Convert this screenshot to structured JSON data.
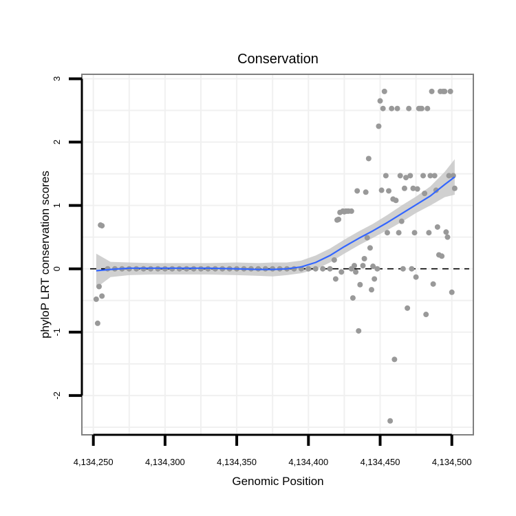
{
  "chart_data": {
    "type": "scatter",
    "title": "Conservation",
    "xlabel": "Genomic Position",
    "ylabel": "phyloP LRT conservation scores",
    "xlim": [
      4134242,
      4134515
    ],
    "ylim": [
      -2.62,
      3.07
    ],
    "x_ticks": [
      4134250,
      4134300,
      4134350,
      4134400,
      4134450,
      4134500
    ],
    "x_tick_labels": [
      "4,134,250",
      "4,134,300",
      "4,134,350",
      "4,134,400",
      "4,134,450",
      "4,134,500"
    ],
    "y_ticks": [
      -2,
      -1,
      0,
      1,
      2,
      3
    ],
    "y_tick_labels": [
      "-2",
      "-1",
      "0",
      "1",
      "2",
      "3"
    ],
    "reference_line": {
      "y": 0,
      "style": "dashed",
      "color": "#000000"
    },
    "grid": true,
    "colors": {
      "points": "#999999",
      "smooth": "#3366ff",
      "ribbon": "#c8c8c8",
      "grid": "#f0f0f0",
      "border": "#7f7f7f"
    },
    "series": [
      {
        "name": "observations",
        "type": "scatter",
        "points": [
          [
            4134252,
            -0.48
          ],
          [
            4134253,
            -0.86
          ],
          [
            4134254,
            -0.28
          ],
          [
            4134255,
            0.69
          ],
          [
            4134256,
            0.68
          ],
          [
            4134256,
            -0.43
          ],
          [
            4134260,
            0
          ],
          [
            4134265,
            0
          ],
          [
            4134270,
            0
          ],
          [
            4134275,
            0
          ],
          [
            4134280,
            0
          ],
          [
            4134285,
            0
          ],
          [
            4134290,
            0
          ],
          [
            4134295,
            0
          ],
          [
            4134300,
            0
          ],
          [
            4134305,
            0
          ],
          [
            4134310,
            0
          ],
          [
            4134315,
            0
          ],
          [
            4134320,
            0
          ],
          [
            4134325,
            0
          ],
          [
            4134330,
            0
          ],
          [
            4134335,
            0
          ],
          [
            4134340,
            0
          ],
          [
            4134345,
            0
          ],
          [
            4134350,
            0
          ],
          [
            4134355,
            0
          ],
          [
            4134360,
            0
          ],
          [
            4134365,
            0
          ],
          [
            4134370,
            0
          ],
          [
            4134375,
            0
          ],
          [
            4134380,
            0
          ],
          [
            4134385,
            0
          ],
          [
            4134390,
            0
          ],
          [
            4134395,
            0
          ],
          [
            4134400,
            0
          ],
          [
            4134405,
            0
          ],
          [
            4134410,
            0
          ],
          [
            4134415,
            0
          ],
          [
            4134418,
            0.14
          ],
          [
            4134419,
            -0.16
          ],
          [
            4134420,
            0.77
          ],
          [
            4134421,
            0.78
          ],
          [
            4134422,
            0.89
          ],
          [
            4134423,
            -0.05
          ],
          [
            4134424,
            0.91
          ],
          [
            4134425,
            0.9
          ],
          [
            4134426,
            0.91
          ],
          [
            4134427,
            0.91
          ],
          [
            4134428,
            0.91
          ],
          [
            4134430,
            0.91
          ],
          [
            4134430,
            0
          ],
          [
            4134431,
            -0.46
          ],
          [
            4134432,
            0.05
          ],
          [
            4134433,
            -0.05
          ],
          [
            4134434,
            1.23
          ],
          [
            4134435,
            -0.98
          ],
          [
            4134436,
            -0.25
          ],
          [
            4134438,
            0.05
          ],
          [
            4134439,
            0.16
          ],
          [
            4134440,
            1.21
          ],
          [
            4134441,
            0.49
          ],
          [
            4134442,
            1.74
          ],
          [
            4134443,
            0.33
          ],
          [
            4134444,
            -0.33
          ],
          [
            4134445,
            0.04
          ],
          [
            4134446,
            -0.16
          ],
          [
            4134448,
            0
          ],
          [
            4134449,
            2.25
          ],
          [
            4134450,
            2.65
          ],
          [
            4134451,
            1.24
          ],
          [
            4134452,
            2.53
          ],
          [
            4134453,
            2.8
          ],
          [
            4134454,
            1.47
          ],
          [
            4134455,
            0.57
          ],
          [
            4134456,
            1.23
          ],
          [
            4134457,
            -2.4
          ],
          [
            4134458,
            2.53
          ],
          [
            4134459,
            1.1
          ],
          [
            4134460,
            -1.43
          ],
          [
            4134461,
            1.08
          ],
          [
            4134462,
            2.53
          ],
          [
            4134463,
            0.57
          ],
          [
            4134464,
            1.47
          ],
          [
            4134465,
            0.75
          ],
          [
            4134466,
            0
          ],
          [
            4134467,
            1.27
          ],
          [
            4134468,
            1.44
          ],
          [
            4134469,
            -0.62
          ],
          [
            4134470,
            2.53
          ],
          [
            4134471,
            1.47
          ],
          [
            4134472,
            0
          ],
          [
            4134473,
            1.27
          ],
          [
            4134474,
            0.57
          ],
          [
            4134475,
            -0.13
          ],
          [
            4134476,
            1.26
          ],
          [
            4134477,
            2.53
          ],
          [
            4134478,
            2.53
          ],
          [
            4134479,
            2.53
          ],
          [
            4134480,
            1.47
          ],
          [
            4134481,
            1.19
          ],
          [
            4134482,
            -0.72
          ],
          [
            4134483,
            2.53
          ],
          [
            4134484,
            0.57
          ],
          [
            4134485,
            1.47
          ],
          [
            4134486,
            2.8
          ],
          [
            4134487,
            -0.24
          ],
          [
            4134488,
            1.47
          ],
          [
            4134489,
            1.24
          ],
          [
            4134490,
            0.66
          ],
          [
            4134491,
            0.22
          ],
          [
            4134492,
            2.8
          ],
          [
            4134493,
            0.2
          ],
          [
            4134494,
            2.8
          ],
          [
            4134495,
            2.8
          ],
          [
            4134496,
            0.58
          ],
          [
            4134497,
            0.5
          ],
          [
            4134498,
            1.47
          ],
          [
            4134499,
            2.8
          ],
          [
            4134500,
            -0.37
          ],
          [
            4134501,
            1.47
          ],
          [
            4134502,
            1.27
          ]
        ]
      },
      {
        "name": "loess smooth",
        "type": "line",
        "points": [
          [
            4134252,
            -0.03
          ],
          [
            4134262,
            -0.01
          ],
          [
            4134275,
            0.01
          ],
          [
            4134290,
            0.01
          ],
          [
            4134310,
            0.01
          ],
          [
            4134330,
            0.01
          ],
          [
            4134350,
            0.0
          ],
          [
            4134365,
            -0.01
          ],
          [
            4134375,
            -0.01
          ],
          [
            4134385,
            0.0
          ],
          [
            4134395,
            0.03
          ],
          [
            4134405,
            0.1
          ],
          [
            4134415,
            0.21
          ],
          [
            4134425,
            0.35
          ],
          [
            4134435,
            0.48
          ],
          [
            4134445,
            0.6
          ],
          [
            4134455,
            0.73
          ],
          [
            4134465,
            0.87
          ],
          [
            4134475,
            1.01
          ],
          [
            4134485,
            1.15
          ],
          [
            4134495,
            1.33
          ],
          [
            4134502,
            1.45
          ]
        ]
      },
      {
        "name": "confidence band",
        "type": "area",
        "lower": [
          [
            4134252,
            -0.3
          ],
          [
            4134262,
            -0.13
          ],
          [
            4134275,
            -0.1
          ],
          [
            4134290,
            -0.09
          ],
          [
            4134310,
            -0.09
          ],
          [
            4134330,
            -0.09
          ],
          [
            4134350,
            -0.1
          ],
          [
            4134365,
            -0.11
          ],
          [
            4134375,
            -0.12
          ],
          [
            4134385,
            -0.1
          ],
          [
            4134395,
            -0.07
          ],
          [
            4134405,
            -0.01
          ],
          [
            4134415,
            0.1
          ],
          [
            4134425,
            0.24
          ],
          [
            4134435,
            0.37
          ],
          [
            4134445,
            0.49
          ],
          [
            4134455,
            0.61
          ],
          [
            4134465,
            0.74
          ],
          [
            4134475,
            0.88
          ],
          [
            4134485,
            1.0
          ],
          [
            4134495,
            1.13
          ],
          [
            4134502,
            1.17
          ]
        ],
        "upper": [
          [
            4134252,
            0.24
          ],
          [
            4134262,
            0.11
          ],
          [
            4134275,
            0.1
          ],
          [
            4134290,
            0.09
          ],
          [
            4134310,
            0.09
          ],
          [
            4134330,
            0.09
          ],
          [
            4134350,
            0.1
          ],
          [
            4134365,
            0.09
          ],
          [
            4134375,
            0.1
          ],
          [
            4134385,
            0.1
          ],
          [
            4134395,
            0.13
          ],
          [
            4134405,
            0.21
          ],
          [
            4134415,
            0.32
          ],
          [
            4134425,
            0.46
          ],
          [
            4134435,
            0.59
          ],
          [
            4134445,
            0.71
          ],
          [
            4134455,
            0.85
          ],
          [
            4134465,
            1.0
          ],
          [
            4134475,
            1.14
          ],
          [
            4134485,
            1.3
          ],
          [
            4134495,
            1.53
          ],
          [
            4134502,
            1.73
          ]
        ]
      }
    ]
  }
}
